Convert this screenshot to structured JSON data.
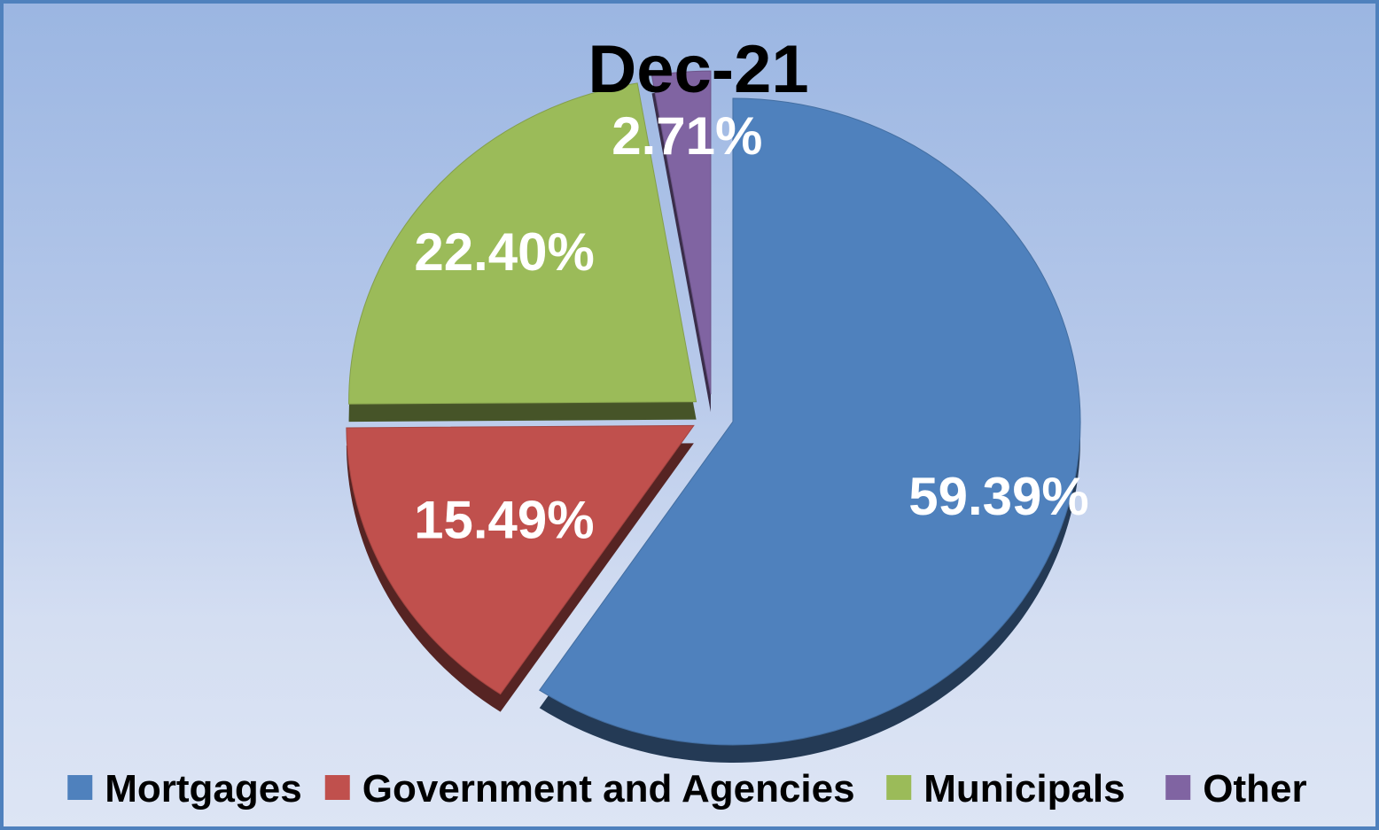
{
  "chart_data": {
    "type": "pie",
    "title": "Dec-21",
    "categories": [
      "Mortgages",
      "Government and Agencies",
      "Municipals",
      "Other"
    ],
    "values": [
      59.39,
      15.49,
      22.4,
      2.71
    ],
    "labels": [
      "59.39%",
      "15.49%",
      "22.40%",
      "2.71%"
    ],
    "colors": [
      "#4f81bd",
      "#c0504d",
      "#9bbb59",
      "#8064a2"
    ],
    "legend_position": "bottom",
    "exploded": true,
    "style": "3d-tilted"
  }
}
